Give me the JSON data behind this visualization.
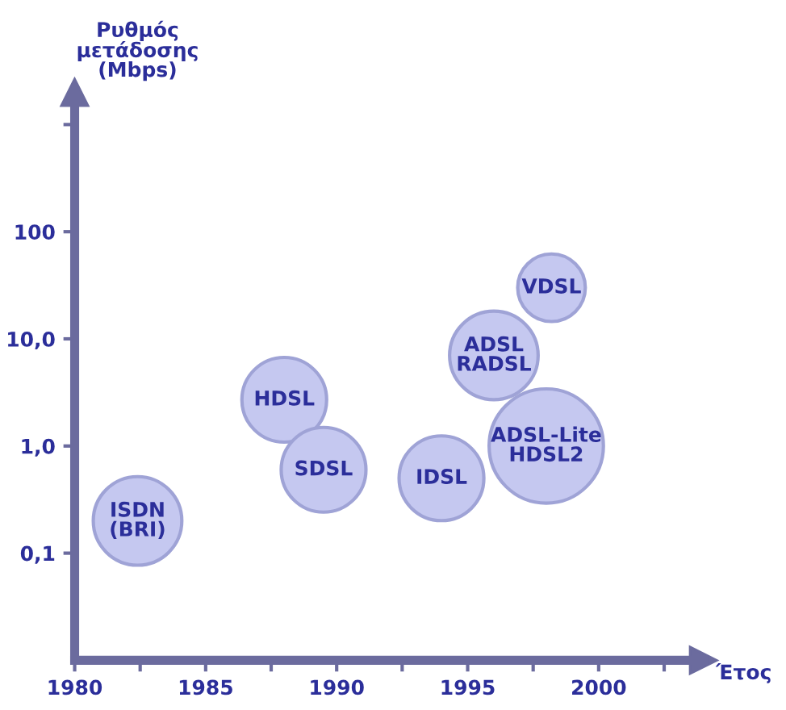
{
  "chart_data": {
    "type": "bubble",
    "xlabel": "Έτος",
    "ylabel": "Ρυθμός\nμετάδοσης\n(Mbps)",
    "x": [
      1982.4,
      1988,
      1989.5,
      1994,
      1996,
      1998,
      1998.2
    ],
    "values": [
      0.2,
      2.7,
      0.6,
      0.5,
      7,
      1.0,
      30
    ],
    "sizes": [
      0.6,
      0.55,
      0.55,
      0.55,
      0.6,
      1,
      0.35
    ],
    "color": "#c5c8f0",
    "annotations": [
      {
        "text": "ISDN\n(BRI)",
        "x": 1982.4,
        "y": 0.2
      },
      {
        "text": "HDSL",
        "x": 1988,
        "y": 2.7
      },
      {
        "text": "SDSL",
        "x": 1989.5,
        "y": 0.6
      },
      {
        "text": "IDSL",
        "x": 1994,
        "y": 0.5
      },
      {
        "text": "ADSL\nRADSL",
        "x": 1996,
        "y": 7
      },
      {
        "text": "ADSL-Lite\nHDSL2",
        "x": 1998,
        "y": 1.0
      },
      {
        "text": "VDSL",
        "x": 1998.2,
        "y": 30
      }
    ],
    "log": "y",
    "xlim": [
      1980,
      2004
    ],
    "ylim": [
      0.01,
      2000
    ],
    "xticks": [
      1980,
      {
        "value": 1982.5,
        "label": null
      },
      1985,
      {
        "value": 1987.5,
        "label": null
      },
      1990,
      {
        "value": 1992.5,
        "label": null
      },
      1995,
      {
        "value": 1997.5,
        "label": null
      },
      2000,
      {
        "value": 2002.5,
        "label": null
      }
    ],
    "yticks": [
      {
        "value": 0.1,
        "label": "0,1"
      },
      {
        "value": 1,
        "label": "1,0"
      },
      {
        "value": 10,
        "label": "10,0"
      },
      100,
      {
        "value": 1000,
        "label": null
      }
    ],
    "grid": false,
    "legend": false
  }
}
